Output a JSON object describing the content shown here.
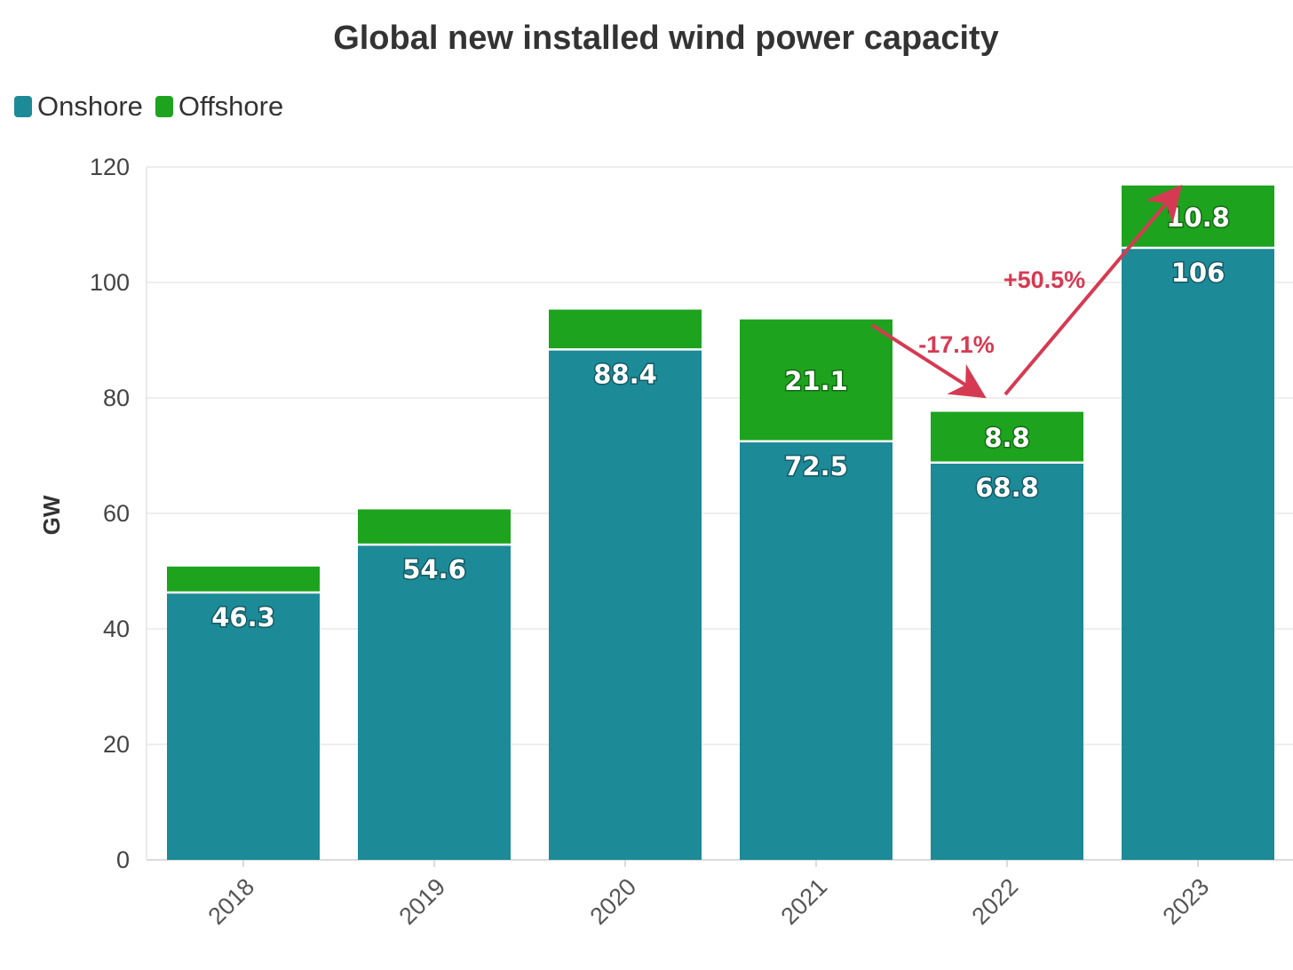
{
  "chart_data": {
    "type": "bar",
    "stacked": true,
    "title": "Global new installed wind power capacity",
    "xlabel": "",
    "ylabel": "GW",
    "ylim": [
      0,
      120
    ],
    "yticks": [
      0,
      20,
      40,
      60,
      80,
      100,
      120
    ],
    "grid": true,
    "legend_position": "top-left",
    "categories": [
      "2018",
      "2019",
      "2020",
      "2021",
      "2022",
      "2023"
    ],
    "series": [
      {
        "name": "Onshore",
        "color": "#1d8a98",
        "values": [
          46.3,
          54.6,
          88.4,
          72.5,
          68.8,
          106
        ],
        "labels": [
          "46.3",
          "54.6",
          "88.4",
          "72.5",
          "68.8",
          "106"
        ]
      },
      {
        "name": "Offshore",
        "color": "#1ea31e",
        "values": [
          4.5,
          6.1,
          6.9,
          21.1,
          8.8,
          10.8
        ],
        "labels": [
          "",
          "",
          "",
          "21.1",
          "8.8",
          "10.8"
        ]
      }
    ],
    "annotations": [
      {
        "text": "-17.1%",
        "from": "2021",
        "to": "2022",
        "color": "#d63a52"
      },
      {
        "text": "+50.5%",
        "from": "2022",
        "to": "2023",
        "color": "#d63a52"
      }
    ]
  }
}
